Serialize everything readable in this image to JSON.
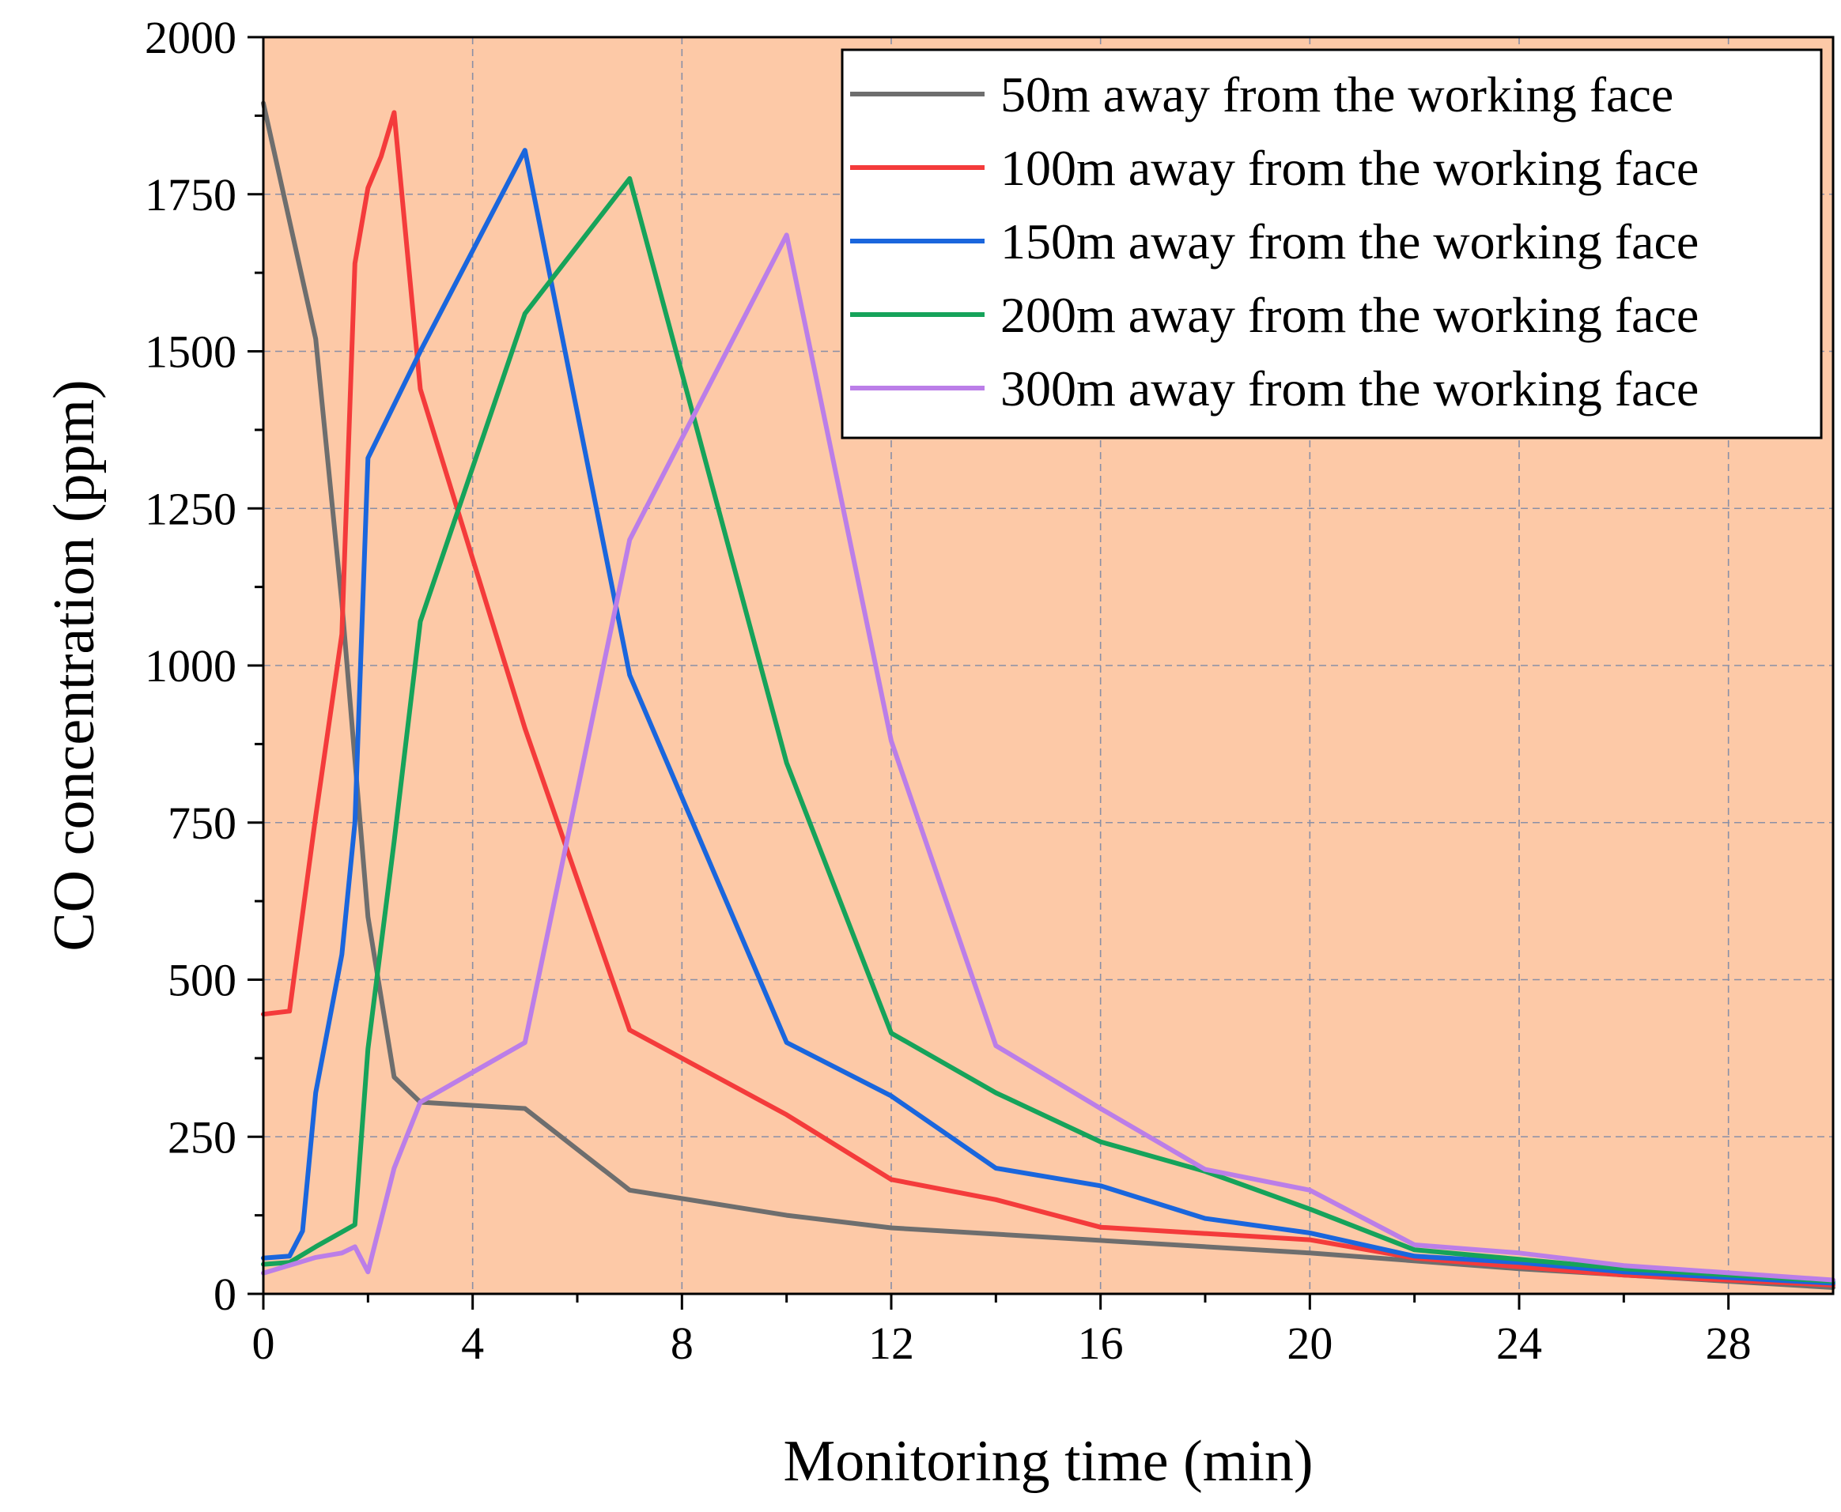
{
  "chart_data": {
    "type": "line",
    "title": "",
    "xlabel": "Monitoring time (min)",
    "ylabel": "CO concentration (ppm)",
    "xlim": [
      0,
      30
    ],
    "ylim": [
      0,
      2000
    ],
    "xticks": [
      0,
      4,
      8,
      12,
      16,
      20,
      24,
      28
    ],
    "yticks": [
      0,
      250,
      500,
      750,
      1000,
      1250,
      1500,
      1750,
      2000
    ],
    "grid": true,
    "plot_background": "#fdc9a7",
    "legend_position": "top-right",
    "series": [
      {
        "name": "50m away from the working face",
        "color": "#6e6e6e",
        "x": [
          0,
          1,
          1.5,
          2,
          2.5,
          3,
          5,
          7,
          10,
          12,
          16,
          20,
          24,
          30
        ],
        "y": [
          1895,
          1520,
          1100,
          600,
          345,
          305,
          295,
          165,
          125,
          105,
          85,
          65,
          40,
          10
        ]
      },
      {
        "name": "100m away from the working face",
        "color": "#f43b3b",
        "x": [
          0,
          0.5,
          1,
          1.5,
          1.75,
          2,
          2.25,
          2.5,
          3,
          5,
          7,
          10,
          12,
          14,
          16,
          20,
          22,
          24,
          26,
          30
        ],
        "y": [
          445,
          450,
          760,
          1050,
          1640,
          1760,
          1810,
          1880,
          1440,
          900,
          420,
          285,
          182,
          150,
          106,
          86,
          57,
          43,
          30,
          14
        ]
      },
      {
        "name": "150m away from the working face",
        "color": "#1a66dd",
        "x": [
          0,
          0.5,
          0.75,
          1,
          1.5,
          1.75,
          2,
          3,
          5,
          7,
          10,
          12,
          14,
          16,
          18,
          20,
          22,
          24,
          26,
          30
        ],
        "y": [
          57,
          60,
          100,
          320,
          540,
          750,
          1330,
          1500,
          1820,
          985,
          400,
          315,
          200,
          172,
          120,
          97,
          60,
          50,
          35,
          17
        ]
      },
      {
        "name": "200m away from the working face",
        "color": "#16a35a",
        "x": [
          0,
          0.5,
          1,
          1.75,
          2,
          2.5,
          3,
          5,
          7,
          10,
          12,
          14,
          16,
          18,
          20,
          22,
          24,
          26,
          30
        ],
        "y": [
          47,
          50,
          75,
          110,
          390,
          720,
          1070,
          1560,
          1775,
          845,
          415,
          320,
          242,
          195,
          135,
          70,
          55,
          40,
          20
        ]
      },
      {
        "name": "300m away from the working face",
        "color": "#bb7ee8",
        "x": [
          0,
          1,
          1.5,
          1.75,
          2,
          2.5,
          3,
          5,
          7,
          10,
          12,
          14,
          16,
          18,
          20,
          22,
          24,
          26,
          30
        ],
        "y": [
          33,
          58,
          65,
          75,
          35,
          200,
          305,
          400,
          1200,
          1685,
          880,
          395,
          295,
          198,
          165,
          78,
          65,
          45,
          22
        ]
      }
    ]
  }
}
